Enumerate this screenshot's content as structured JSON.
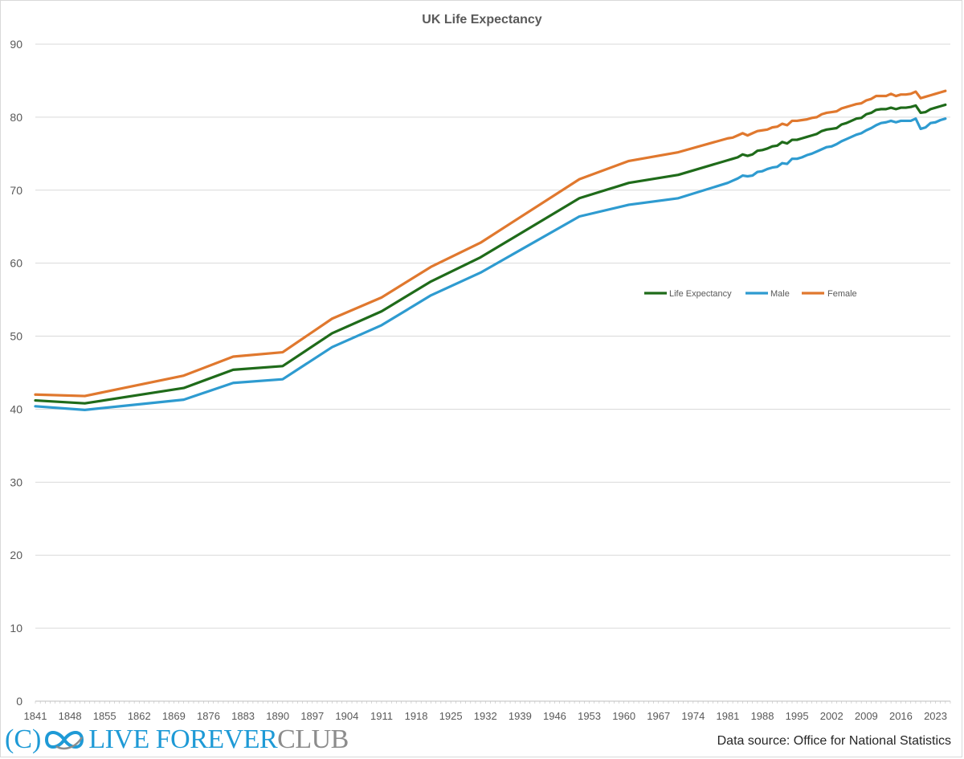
{
  "colors": {
    "life_expectancy": "#1f6b1a",
    "male": "#2e9bd0",
    "female": "#e0782e",
    "grid": "#d9d9d9",
    "axis_text": "#595959"
  },
  "logo": {
    "prefix": "(C)",
    "brand_blue": "LIVE FOREVER",
    "brand_grey": "CLUB",
    "mark": "infinity-icon"
  },
  "source": "Data source: Office for National Statistics",
  "chart_data": {
    "type": "line",
    "title": "UK Life Expectancy",
    "xlabel": "",
    "ylabel": "",
    "xlim": [
      1841,
      2026
    ],
    "ylim": [
      0,
      90
    ],
    "y_ticks": [
      0,
      10,
      20,
      30,
      40,
      50,
      60,
      70,
      80,
      90
    ],
    "x_ticks": [
      1841,
      1848,
      1855,
      1862,
      1869,
      1876,
      1883,
      1890,
      1897,
      1904,
      1911,
      1918,
      1925,
      1932,
      1939,
      1946,
      1953,
      1960,
      1967,
      1974,
      1981,
      1988,
      1995,
      2002,
      2009,
      2016,
      2023
    ],
    "grid": "horizontal",
    "legend": "right-center",
    "series": [
      {
        "name": "Life Expectancy",
        "color": "#1f6b1a",
        "points": [
          [
            1841,
            41.2
          ],
          [
            1851,
            40.8
          ],
          [
            1871,
            42.9
          ],
          [
            1881,
            45.4
          ],
          [
            1891,
            45.9
          ],
          [
            1901,
            50.4
          ],
          [
            1911,
            53.4
          ],
          [
            1921,
            57.5
          ],
          [
            1931,
            60.8
          ],
          [
            1951,
            68.9
          ],
          [
            1961,
            71.0
          ],
          [
            1971,
            72.1
          ],
          [
            1981,
            74.1
          ],
          [
            1982,
            74.3
          ],
          [
            1983,
            74.5
          ],
          [
            1984,
            74.9
          ],
          [
            1985,
            74.7
          ],
          [
            1986,
            74.9
          ],
          [
            1987,
            75.4
          ],
          [
            1988,
            75.5
          ],
          [
            1989,
            75.7
          ],
          [
            1990,
            76.0
          ],
          [
            1991,
            76.1
          ],
          [
            1992,
            76.6
          ],
          [
            1993,
            76.4
          ],
          [
            1994,
            76.9
          ],
          [
            1995,
            76.9
          ],
          [
            1996,
            77.1
          ],
          [
            1997,
            77.3
          ],
          [
            1998,
            77.5
          ],
          [
            1999,
            77.7
          ],
          [
            2000,
            78.1
          ],
          [
            2001,
            78.3
          ],
          [
            2002,
            78.4
          ],
          [
            2003,
            78.5
          ],
          [
            2004,
            79.0
          ],
          [
            2005,
            79.2
          ],
          [
            2006,
            79.5
          ],
          [
            2007,
            79.8
          ],
          [
            2008,
            79.9
          ],
          [
            2009,
            80.4
          ],
          [
            2010,
            80.6
          ],
          [
            2011,
            81.0
          ],
          [
            2012,
            81.1
          ],
          [
            2013,
            81.1
          ],
          [
            2014,
            81.3
          ],
          [
            2015,
            81.1
          ],
          [
            2016,
            81.3
          ],
          [
            2017,
            81.3
          ],
          [
            2018,
            81.4
          ],
          [
            2019,
            81.6
          ],
          [
            2020,
            80.6
          ],
          [
            2021,
            80.7
          ],
          [
            2022,
            81.1
          ],
          [
            2023,
            81.3
          ],
          [
            2024,
            81.5
          ],
          [
            2025,
            81.7
          ]
        ]
      },
      {
        "name": "Male",
        "color": "#2e9bd0",
        "points": [
          [
            1841,
            40.4
          ],
          [
            1851,
            39.9
          ],
          [
            1871,
            41.3
          ],
          [
            1881,
            43.6
          ],
          [
            1891,
            44.1
          ],
          [
            1901,
            48.5
          ],
          [
            1911,
            51.5
          ],
          [
            1921,
            55.6
          ],
          [
            1931,
            58.7
          ],
          [
            1951,
            66.4
          ],
          [
            1961,
            68.0
          ],
          [
            1971,
            68.9
          ],
          [
            1981,
            71.0
          ],
          [
            1982,
            71.3
          ],
          [
            1983,
            71.6
          ],
          [
            1984,
            72.0
          ],
          [
            1985,
            71.9
          ],
          [
            1986,
            72.0
          ],
          [
            1987,
            72.5
          ],
          [
            1988,
            72.6
          ],
          [
            1989,
            72.9
          ],
          [
            1990,
            73.1
          ],
          [
            1991,
            73.2
          ],
          [
            1992,
            73.7
          ],
          [
            1993,
            73.6
          ],
          [
            1994,
            74.3
          ],
          [
            1995,
            74.3
          ],
          [
            1996,
            74.5
          ],
          [
            1997,
            74.8
          ],
          [
            1998,
            75.0
          ],
          [
            1999,
            75.3
          ],
          [
            2000,
            75.6
          ],
          [
            2001,
            75.9
          ],
          [
            2002,
            76.0
          ],
          [
            2003,
            76.3
          ],
          [
            2004,
            76.7
          ],
          [
            2005,
            77.0
          ],
          [
            2006,
            77.3
          ],
          [
            2007,
            77.6
          ],
          [
            2008,
            77.8
          ],
          [
            2009,
            78.2
          ],
          [
            2010,
            78.5
          ],
          [
            2011,
            78.9
          ],
          [
            2012,
            79.2
          ],
          [
            2013,
            79.3
          ],
          [
            2014,
            79.5
          ],
          [
            2015,
            79.3
          ],
          [
            2016,
            79.5
          ],
          [
            2017,
            79.5
          ],
          [
            2018,
            79.5
          ],
          [
            2019,
            79.8
          ],
          [
            2020,
            78.4
          ],
          [
            2021,
            78.6
          ],
          [
            2022,
            79.2
          ],
          [
            2023,
            79.3
          ],
          [
            2024,
            79.6
          ],
          [
            2025,
            79.8
          ]
        ]
      },
      {
        "name": "Female",
        "color": "#e0782e",
        "points": [
          [
            1841,
            42.0
          ],
          [
            1851,
            41.8
          ],
          [
            1871,
            44.6
          ],
          [
            1881,
            47.2
          ],
          [
            1891,
            47.8
          ],
          [
            1901,
            52.4
          ],
          [
            1911,
            55.3
          ],
          [
            1921,
            59.5
          ],
          [
            1931,
            62.8
          ],
          [
            1951,
            71.5
          ],
          [
            1961,
            74.0
          ],
          [
            1971,
            75.2
          ],
          [
            1981,
            77.1
          ],
          [
            1982,
            77.2
          ],
          [
            1983,
            77.5
          ],
          [
            1984,
            77.8
          ],
          [
            1985,
            77.5
          ],
          [
            1986,
            77.8
          ],
          [
            1987,
            78.1
          ],
          [
            1988,
            78.2
          ],
          [
            1989,
            78.3
          ],
          [
            1990,
            78.6
          ],
          [
            1991,
            78.7
          ],
          [
            1992,
            79.1
          ],
          [
            1993,
            78.9
          ],
          [
            1994,
            79.5
          ],
          [
            1995,
            79.5
          ],
          [
            1996,
            79.6
          ],
          [
            1997,
            79.7
          ],
          [
            1998,
            79.9
          ],
          [
            1999,
            80.0
          ],
          [
            2000,
            80.4
          ],
          [
            2001,
            80.6
          ],
          [
            2002,
            80.7
          ],
          [
            2003,
            80.8
          ],
          [
            2004,
            81.2
          ],
          [
            2005,
            81.4
          ],
          [
            2006,
            81.6
          ],
          [
            2007,
            81.8
          ],
          [
            2008,
            81.9
          ],
          [
            2009,
            82.3
          ],
          [
            2010,
            82.5
          ],
          [
            2011,
            82.9
          ],
          [
            2012,
            82.9
          ],
          [
            2013,
            82.9
          ],
          [
            2014,
            83.2
          ],
          [
            2015,
            82.9
          ],
          [
            2016,
            83.1
          ],
          [
            2017,
            83.1
          ],
          [
            2018,
            83.2
          ],
          [
            2019,
            83.5
          ],
          [
            2020,
            82.6
          ],
          [
            2021,
            82.8
          ],
          [
            2022,
            83.0
          ],
          [
            2023,
            83.2
          ],
          [
            2024,
            83.4
          ],
          [
            2025,
            83.6
          ]
        ]
      }
    ]
  }
}
